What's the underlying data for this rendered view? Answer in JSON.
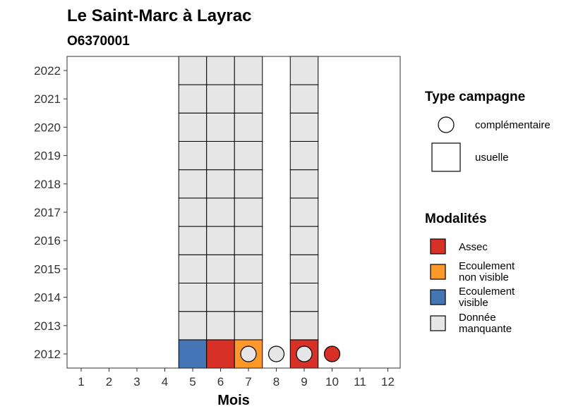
{
  "chart_data": {
    "type": "heatmap",
    "title": "Le Saint-Marc à Layrac",
    "subtitle": "O6370001",
    "xlabel": "Mois",
    "ylabel": "",
    "x_ticks": [
      "1",
      "2",
      "3",
      "4",
      "5",
      "6",
      "7",
      "8",
      "9",
      "10",
      "11",
      "12"
    ],
    "y_ticks": [
      "2012",
      "2013",
      "2014",
      "2015",
      "2016",
      "2017",
      "2018",
      "2019",
      "2020",
      "2021",
      "2022"
    ],
    "xlim": [
      0.5,
      12.5
    ],
    "ylim": [
      2011.5,
      2022.5
    ],
    "grid": false,
    "legend_position": "right",
    "categories": {
      "assec": {
        "label": "Assec",
        "color": "#d73027"
      },
      "ecoulement_non_visible": {
        "label": "Ecoulement\nnon visible",
        "color": "#fe9929"
      },
      "ecoulement_visible": {
        "label": "Ecoulement\nvisible",
        "color": "#4575b4"
      },
      "donnee_manquante": {
        "label": "Donnée\nmanquante",
        "color": "#e6e6e6"
      }
    },
    "tiles": [
      {
        "month": 5,
        "year": 2012,
        "modalite": "ecoulement_visible"
      },
      {
        "month": 6,
        "year": 2012,
        "modalite": "assec"
      },
      {
        "month": 7,
        "year": 2012,
        "modalite": "ecoulement_non_visible"
      },
      {
        "month": 9,
        "year": 2012,
        "modalite": "assec"
      },
      {
        "month": 5,
        "year": 2013,
        "modalite": "donnee_manquante"
      },
      {
        "month": 6,
        "year": 2013,
        "modalite": "donnee_manquante"
      },
      {
        "month": 7,
        "year": 2013,
        "modalite": "donnee_manquante"
      },
      {
        "month": 9,
        "year": 2013,
        "modalite": "donnee_manquante"
      },
      {
        "month": 5,
        "year": 2014,
        "modalite": "donnee_manquante"
      },
      {
        "month": 6,
        "year": 2014,
        "modalite": "donnee_manquante"
      },
      {
        "month": 7,
        "year": 2014,
        "modalite": "donnee_manquante"
      },
      {
        "month": 9,
        "year": 2014,
        "modalite": "donnee_manquante"
      },
      {
        "month": 5,
        "year": 2015,
        "modalite": "donnee_manquante"
      },
      {
        "month": 6,
        "year": 2015,
        "modalite": "donnee_manquante"
      },
      {
        "month": 7,
        "year": 2015,
        "modalite": "donnee_manquante"
      },
      {
        "month": 9,
        "year": 2015,
        "modalite": "donnee_manquante"
      },
      {
        "month": 5,
        "year": 2016,
        "modalite": "donnee_manquante"
      },
      {
        "month": 6,
        "year": 2016,
        "modalite": "donnee_manquante"
      },
      {
        "month": 7,
        "year": 2016,
        "modalite": "donnee_manquante"
      },
      {
        "month": 9,
        "year": 2016,
        "modalite": "donnee_manquante"
      },
      {
        "month": 5,
        "year": 2017,
        "modalite": "donnee_manquante"
      },
      {
        "month": 6,
        "year": 2017,
        "modalite": "donnee_manquante"
      },
      {
        "month": 7,
        "year": 2017,
        "modalite": "donnee_manquante"
      },
      {
        "month": 9,
        "year": 2017,
        "modalite": "donnee_manquante"
      },
      {
        "month": 5,
        "year": 2018,
        "modalite": "donnee_manquante"
      },
      {
        "month": 6,
        "year": 2018,
        "modalite": "donnee_manquante"
      },
      {
        "month": 7,
        "year": 2018,
        "modalite": "donnee_manquante"
      },
      {
        "month": 9,
        "year": 2018,
        "modalite": "donnee_manquante"
      },
      {
        "month": 5,
        "year": 2019,
        "modalite": "donnee_manquante"
      },
      {
        "month": 6,
        "year": 2019,
        "modalite": "donnee_manquante"
      },
      {
        "month": 7,
        "year": 2019,
        "modalite": "donnee_manquante"
      },
      {
        "month": 9,
        "year": 2019,
        "modalite": "donnee_manquante"
      },
      {
        "month": 5,
        "year": 2020,
        "modalite": "donnee_manquante"
      },
      {
        "month": 6,
        "year": 2020,
        "modalite": "donnee_manquante"
      },
      {
        "month": 7,
        "year": 2020,
        "modalite": "donnee_manquante"
      },
      {
        "month": 9,
        "year": 2020,
        "modalite": "donnee_manquante"
      },
      {
        "month": 5,
        "year": 2021,
        "modalite": "donnee_manquante"
      },
      {
        "month": 6,
        "year": 2021,
        "modalite": "donnee_manquante"
      },
      {
        "month": 7,
        "year": 2021,
        "modalite": "donnee_manquante"
      },
      {
        "month": 9,
        "year": 2021,
        "modalite": "donnee_manquante"
      },
      {
        "month": 5,
        "year": 2022,
        "modalite": "donnee_manquante"
      },
      {
        "month": 6,
        "year": 2022,
        "modalite": "donnee_manquante"
      },
      {
        "month": 7,
        "year": 2022,
        "modalite": "donnee_manquante"
      },
      {
        "month": 9,
        "year": 2022,
        "modalite": "donnee_manquante"
      }
    ],
    "points": [
      {
        "month": 7,
        "year": 2012,
        "modalite": "donnee_manquante"
      },
      {
        "month": 8,
        "year": 2012,
        "modalite": "donnee_manquante"
      },
      {
        "month": 9,
        "year": 2012,
        "modalite": "donnee_manquante"
      },
      {
        "month": 10,
        "year": 2012,
        "modalite": "assec"
      }
    ],
    "legend_type": {
      "title": "Type campagne",
      "entries": [
        {
          "shape": "circle",
          "label": "complémentaire"
        },
        {
          "shape": "square",
          "label": "usuelle"
        }
      ]
    },
    "legend_modalites": {
      "title": "Modalités",
      "order": [
        "assec",
        "ecoulement_non_visible",
        "ecoulement_visible",
        "donnee_manquante"
      ]
    }
  }
}
